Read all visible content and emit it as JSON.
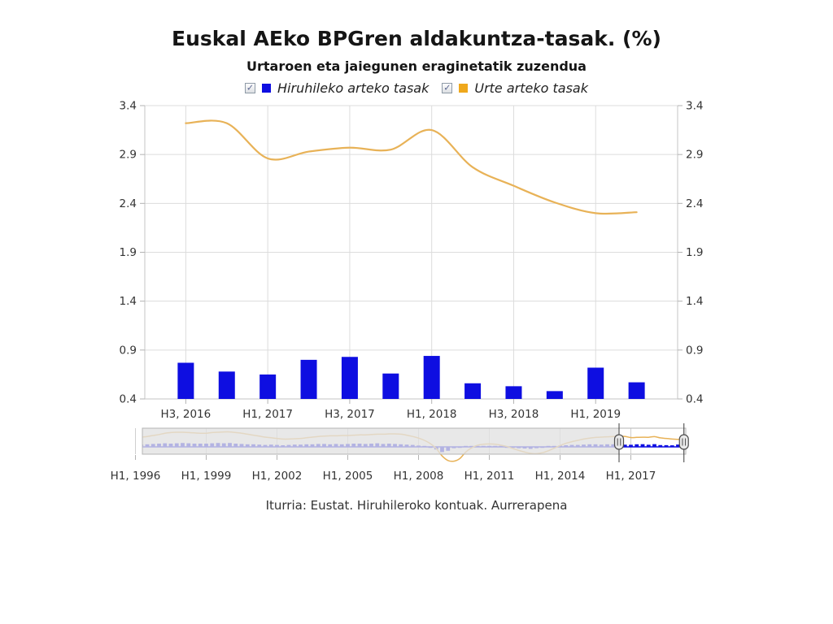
{
  "title": "Euskal AEko BPGren aldakuntza-tasak. (%)",
  "subtitle": "Urtaroen eta jaiegunen eraginetatik zuzendua",
  "source": "Iturria: Eustat. Hiruhileroko kontuak. Aurrerapena",
  "icons": {
    "checkmark": "✓"
  },
  "colors": {
    "bar_blue": "#0e0ee1",
    "legend_orange": "#efa81c",
    "line_gold": "#e8b257",
    "grid": "#dcdcdc",
    "axis": "#c6c6c6",
    "tick": "#b3b3b3",
    "nav_mask": "rgba(225,225,225,0.78)"
  },
  "legend": [
    {
      "label": "Hiruhileko arteko tasak",
      "color": "#0e0ee1",
      "checked": true
    },
    {
      "label": "Urte arteko tasak",
      "color": "#efa81c",
      "checked": true
    }
  ],
  "chart_data": {
    "type": "combo",
    "title": "Euskal AEko BPGren aldakuntza-tasak. (%)",
    "subtitle": "Urtaroen eta jaiegunen eraginetatik zuzendua",
    "main": {
      "quarters": [
        "2016Q3",
        "2016Q4",
        "2017Q1",
        "2017Q2",
        "2017Q3",
        "2017Q4",
        "2018Q1",
        "2018Q2",
        "2018Q3",
        "2018Q4",
        "2019Q1",
        "2019Q2"
      ],
      "x_tick_labels": [
        "H3, 2016",
        "H1, 2017",
        "H3, 2017",
        "H1, 2018",
        "H3, 2018",
        "H1, 2019"
      ],
      "ylim": [
        0.4,
        3.4
      ],
      "yticks": [
        0.4,
        0.9,
        1.4,
        1.9,
        2.4,
        2.9,
        3.4
      ],
      "grid": true,
      "series": [
        {
          "name": "Hiruhileko arteko tasak",
          "type": "bar",
          "color": "#0e0ee1",
          "values": [
            0.77,
            0.68,
            0.65,
            0.8,
            0.83,
            0.66,
            0.84,
            0.56,
            0.53,
            0.48,
            0.72,
            0.57
          ]
        },
        {
          "name": "Urte arteko tasak",
          "type": "line",
          "color": "#e8b257",
          "values": [
            3.22,
            3.22,
            2.86,
            2.93,
            2.97,
            2.95,
            3.15,
            2.77,
            2.58,
            2.41,
            2.3,
            2.31
          ]
        }
      ]
    },
    "navigator": {
      "start_quarter": "1995Q1",
      "x_tick_labels": [
        "H1, 1996",
        "H1, 1999",
        "H1, 2002",
        "H1, 2005",
        "H1, 2008",
        "H1, 2011",
        "H1, 2014",
        "H1, 2017"
      ],
      "x_tick_indices": [
        4,
        16,
        28,
        40,
        52,
        64,
        76,
        88
      ],
      "selected_range_quarters": [
        86,
        97
      ],
      "quarterly": [
        0.8,
        0.9,
        0.7,
        0.8,
        0.6,
        0.7,
        0.8,
        0.9,
        1.0,
        1.1,
        1.0,
        1.1,
        1.2,
        1.1,
        1.0,
        1.0,
        1.0,
        1.1,
        1.2,
        1.1,
        1.2,
        1.0,
        0.9,
        0.8,
        0.8,
        0.7,
        0.6,
        0.7,
        0.6,
        0.5,
        0.6,
        0.7,
        0.7,
        0.8,
        0.8,
        0.9,
        0.9,
        0.8,
        0.9,
        0.8,
        0.9,
        1.0,
        1.0,
        0.9,
        1.0,
        1.1,
        0.9,
        1.0,
        0.9,
        0.8,
        0.7,
        0.6,
        0.4,
        0.2,
        -0.2,
        -0.8,
        -1.6,
        -1.2,
        -0.4,
        -0.1,
        0.2,
        0.3,
        0.1,
        0.2,
        0.3,
        0.2,
        0.0,
        -0.2,
        -0.3,
        -0.4,
        -0.5,
        -0.6,
        -0.4,
        -0.2,
        0.1,
        0.3,
        0.4,
        0.5,
        0.6,
        0.6,
        0.7,
        0.8,
        0.8,
        0.7,
        0.8,
        0.8,
        0.77,
        0.68,
        0.65,
        0.8,
        0.83,
        0.66,
        0.84,
        0.56,
        0.53,
        0.48,
        0.72,
        0.57
      ],
      "annual": [
        3.0,
        3.2,
        3.3,
        3.2,
        2.9,
        3.0,
        3.2,
        3.5,
        3.8,
        4.2,
        4.4,
        4.5,
        4.5,
        4.4,
        4.3,
        4.2,
        4.2,
        4.4,
        4.5,
        4.6,
        4.6,
        4.4,
        4.2,
        3.9,
        3.6,
        3.3,
        3.0,
        2.8,
        2.6,
        2.4,
        2.4,
        2.5,
        2.6,
        2.8,
        3.0,
        3.2,
        3.3,
        3.4,
        3.4,
        3.5,
        3.5,
        3.6,
        3.7,
        3.7,
        3.8,
        3.9,
        3.9,
        4.0,
        4.0,
        3.9,
        3.6,
        3.2,
        2.7,
        2.0,
        1.0,
        -0.5,
        -2.8,
        -4.2,
        -4.4,
        -3.6,
        -1.6,
        -0.3,
        0.5,
        0.8,
        0.9,
        0.8,
        0.5,
        0.1,
        -0.5,
        -1.1,
        -1.6,
        -2.0,
        -2.1,
        -1.8,
        -1.2,
        -0.4,
        0.4,
        1.1,
        1.6,
        2.0,
        2.4,
        2.7,
        2.9,
        3.0,
        3.1,
        3.2,
        3.22,
        3.22,
        2.86,
        2.93,
        2.97,
        2.95,
        3.15,
        2.77,
        2.58,
        2.41,
        2.3,
        2.31
      ]
    }
  }
}
